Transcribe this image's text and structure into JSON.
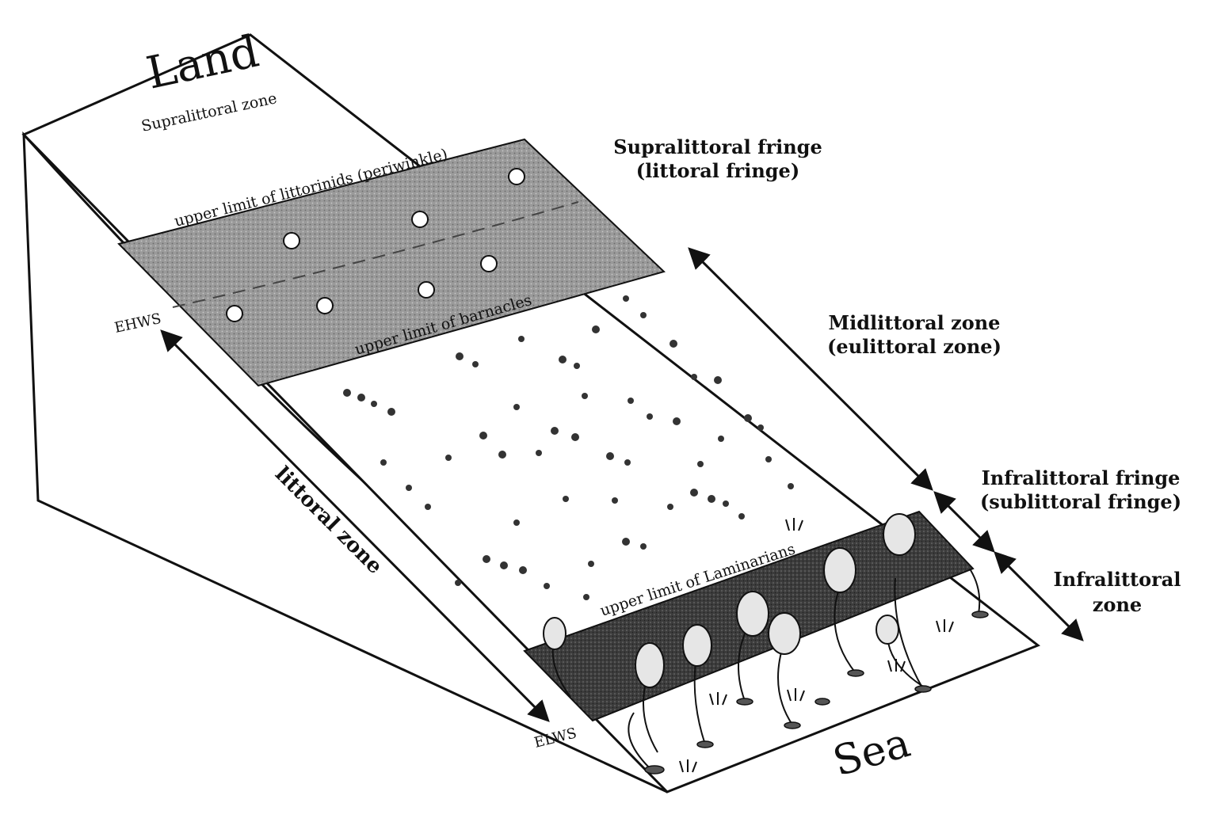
{
  "labels": {
    "land": "Land",
    "sea": "Sea",
    "supralittoral_zone": "Supralittoral zone",
    "supralittoral_fringe_1": "Supralittoral fringe",
    "supralittoral_fringe_2": "(littoral fringe)",
    "midlittoral_1": "Midlittoral zone",
    "midlittoral_2": "(eulittoral zone)",
    "infralittoral_fringe_1": "Infralittoral fringe",
    "infralittoral_fringe_2": "(sublittoral fringe)",
    "infralittoral_zone_1": "Infralittoral",
    "infralittoral_zone_2": "zone",
    "littoral_zone": "littoral zone",
    "ehws": "EHWS",
    "elws": "ELWS",
    "upper_limit_littorinids": "upper limit of littorinids (periwinkle)",
    "upper_limit_barnacles": "upper limit of barnacles",
    "upper_limit_laminarians": "upper limit of Laminarians"
  },
  "colors": {
    "ink": "#111111",
    "fringe_band": "#9a9a9a",
    "kelp_band": "#3c3c3c",
    "slope": "#ffffff"
  }
}
